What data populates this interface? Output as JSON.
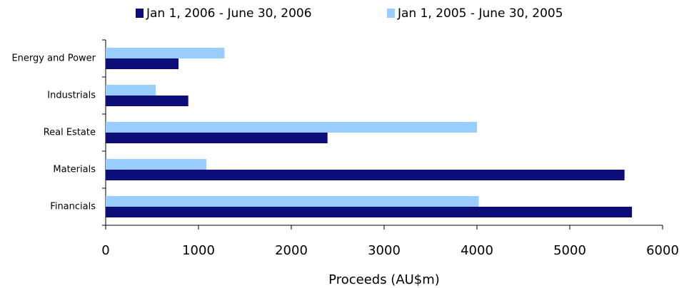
{
  "chart_data": {
    "type": "bar",
    "orientation": "horizontal",
    "categories": [
      "Energy and Power",
      "Industrials",
      "Real Estate",
      "Materials",
      "Financials"
    ],
    "series": [
      {
        "name": "Jan 1, 2006 - June 30, 2006",
        "color": "#0d0d7a",
        "values": [
          785,
          890,
          2390,
          5590,
          5670
        ]
      },
      {
        "name": "Jan 1, 2005 - June 30, 2005",
        "color": "#99ccff",
        "values": [
          1280,
          540,
          4000,
          1085,
          4020
        ]
      }
    ],
    "xlabel": "Proceeds (AU$m)",
    "xlim": [
      0,
      6000
    ],
    "xticks": [
      0,
      1000,
      2000,
      3000,
      4000,
      5000,
      6000
    ],
    "legend": "top",
    "grid": false
  }
}
